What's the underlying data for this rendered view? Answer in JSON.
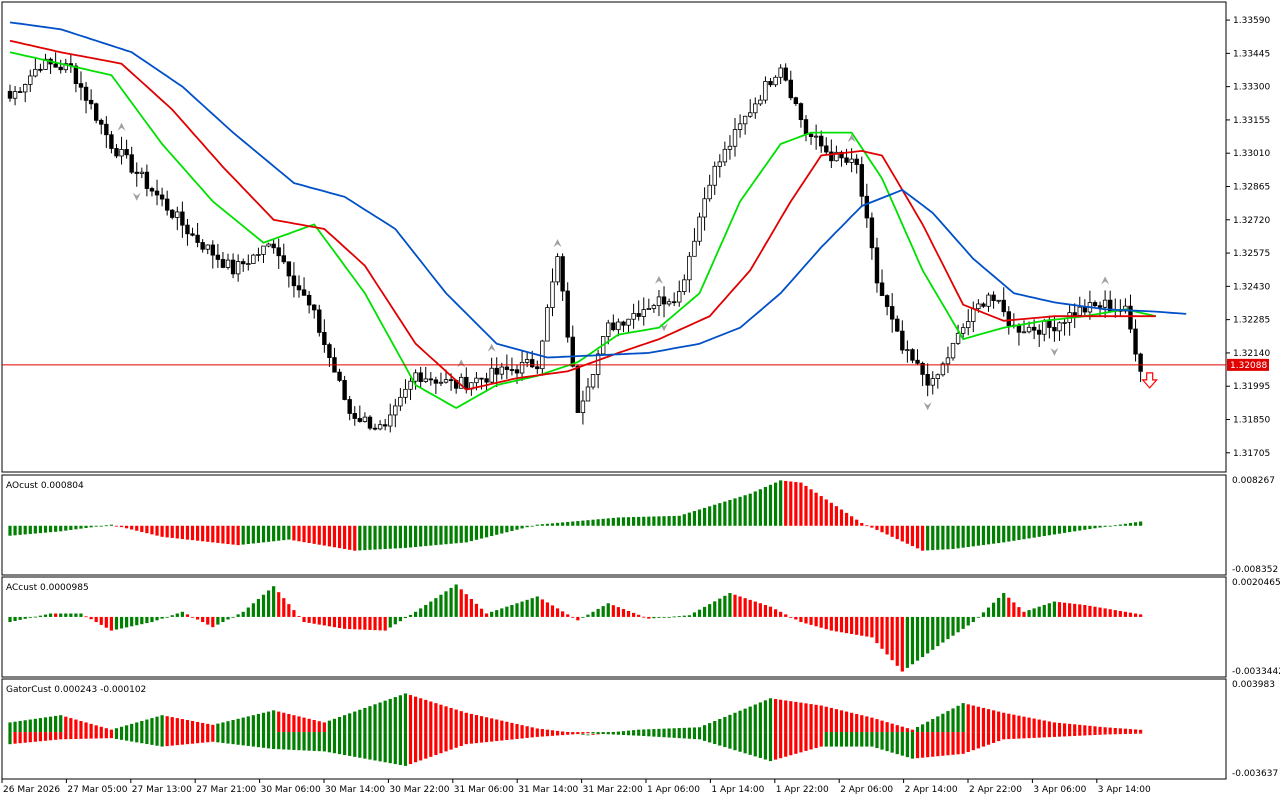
{
  "chart_data": {
    "type": "candlestick",
    "price_axis": {
      "ticks": [
        "1.33590",
        "1.33445",
        "1.33300",
        "1.33155",
        "1.33010",
        "1.32865",
        "1.32720",
        "1.32575",
        "1.32430",
        "1.32285",
        "1.32140",
        "1.31995",
        "1.31850",
        "1.31705"
      ],
      "range": [
        1.3163,
        1.3366
      ]
    },
    "current_price": {
      "value": 1.32088,
      "label": "1.32088",
      "color": "#e00000"
    },
    "time_axis": [
      "26 Mar 2026",
      "27 Mar 05:00",
      "27 Mar 13:00",
      "27 Mar 21:00",
      "30 Mar 06:00",
      "30 Mar 14:00",
      "30 Mar 22:00",
      "31 Mar 06:00",
      "31 Mar 14:00",
      "31 Mar 22:00",
      "1 Apr 06:00",
      "1 Apr 14:00",
      "1 Apr 22:00",
      "2 Apr 06:00",
      "2 Apr 14:00",
      "2 Apr 22:00",
      "3 Apr 06:00",
      "3 Apr 14:00"
    ],
    "close_path": [
      [
        0,
        1.3325
      ],
      [
        6,
        1.334
      ],
      [
        12,
        1.3338
      ],
      [
        20,
        1.3305
      ],
      [
        28,
        1.3285
      ],
      [
        36,
        1.3265
      ],
      [
        44,
        1.325
      ],
      [
        52,
        1.3262
      ],
      [
        60,
        1.323
      ],
      [
        67,
        1.3188
      ],
      [
        74,
        1.318
      ],
      [
        80,
        1.3205
      ],
      [
        88,
        1.32
      ],
      [
        96,
        1.3205
      ],
      [
        104,
        1.321
      ],
      [
        108,
        1.3255
      ],
      [
        112,
        1.319
      ],
      [
        118,
        1.3225
      ],
      [
        126,
        1.3235
      ],
      [
        132,
        1.324
      ],
      [
        138,
        1.329
      ],
      [
        146,
        1.332
      ],
      [
        152,
        1.334
      ],
      [
        157,
        1.331
      ],
      [
        162,
        1.33
      ],
      [
        167,
        1.3295
      ],
      [
        171,
        1.3245
      ],
      [
        176,
        1.3215
      ],
      [
        182,
        1.32
      ],
      [
        188,
        1.3225
      ],
      [
        193,
        1.324
      ],
      [
        198,
        1.3225
      ],
      [
        205,
        1.3225
      ],
      [
        210,
        1.3232
      ],
      [
        216,
        1.3235
      ],
      [
        220,
        1.3232
      ],
      [
        223,
        1.3208
      ]
    ],
    "moving_averages": [
      {
        "color": "#00e000",
        "points": [
          [
            0,
            1.3345
          ],
          [
            10,
            1.334
          ],
          [
            20,
            1.3335
          ],
          [
            30,
            1.3305
          ],
          [
            40,
            1.328
          ],
          [
            50,
            1.3262
          ],
          [
            60,
            1.327
          ],
          [
            70,
            1.324
          ],
          [
            80,
            1.32
          ],
          [
            88,
            1.319
          ],
          [
            96,
            1.32
          ],
          [
            104,
            1.3204
          ],
          [
            112,
            1.321
          ],
          [
            120,
            1.3222
          ],
          [
            128,
            1.3225
          ],
          [
            136,
            1.324
          ],
          [
            144,
            1.328
          ],
          [
            152,
            1.3305
          ],
          [
            158,
            1.331
          ],
          [
            166,
            1.331
          ],
          [
            172,
            1.329
          ],
          [
            180,
            1.325
          ],
          [
            188,
            1.322
          ],
          [
            196,
            1.3225
          ],
          [
            204,
            1.3228
          ],
          [
            212,
            1.323
          ],
          [
            220,
            1.3233
          ],
          [
            226,
            1.323
          ]
        ]
      },
      {
        "color": "#e00000",
        "points": [
          [
            0,
            1.335
          ],
          [
            10,
            1.3345
          ],
          [
            22,
            1.334
          ],
          [
            32,
            1.332
          ],
          [
            42,
            1.3295
          ],
          [
            52,
            1.3272
          ],
          [
            62,
            1.3268
          ],
          [
            70,
            1.3252
          ],
          [
            80,
            1.3218
          ],
          [
            90,
            1.3198
          ],
          [
            100,
            1.3203
          ],
          [
            110,
            1.3206
          ],
          [
            120,
            1.3214
          ],
          [
            128,
            1.322
          ],
          [
            138,
            1.323
          ],
          [
            146,
            1.325
          ],
          [
            154,
            1.328
          ],
          [
            160,
            1.33
          ],
          [
            168,
            1.3302
          ],
          [
            172,
            1.33
          ],
          [
            180,
            1.327
          ],
          [
            188,
            1.3235
          ],
          [
            196,
            1.3228
          ],
          [
            206,
            1.323
          ],
          [
            216,
            1.323
          ],
          [
            226,
            1.323
          ]
        ]
      },
      {
        "color": "#0050c8",
        "points": [
          [
            0,
            1.3358
          ],
          [
            10,
            1.3355
          ],
          [
            24,
            1.3345
          ],
          [
            34,
            1.333
          ],
          [
            44,
            1.331
          ],
          [
            56,
            1.3288
          ],
          [
            66,
            1.3282
          ],
          [
            76,
            1.3268
          ],
          [
            86,
            1.324
          ],
          [
            96,
            1.3218
          ],
          [
            106,
            1.3212
          ],
          [
            116,
            1.3213
          ],
          [
            126,
            1.3214
          ],
          [
            136,
            1.3218
          ],
          [
            144,
            1.3225
          ],
          [
            152,
            1.324
          ],
          [
            160,
            1.326
          ],
          [
            168,
            1.3278
          ],
          [
            176,
            1.3285
          ],
          [
            182,
            1.3275
          ],
          [
            190,
            1.3255
          ],
          [
            198,
            1.324
          ],
          [
            206,
            1.3236
          ],
          [
            216,
            1.3233
          ],
          [
            226,
            1.3232
          ],
          [
            232,
            1.3231
          ]
        ]
      }
    ],
    "indicators": [
      {
        "name": "AOcust",
        "label": "AOcust 0.000804",
        "axis": [
          "0.008267",
          "-0.008352"
        ],
        "range": [
          -0.008352,
          0.008267
        ],
        "colors": [
          "#007f00",
          "#ff0000"
        ],
        "path": [
          [
            0,
            -0.0018
          ],
          [
            10,
            -0.001
          ],
          [
            20,
            0.0002
          ],
          [
            30,
            -0.002
          ],
          [
            45,
            -0.0035
          ],
          [
            55,
            -0.0025
          ],
          [
            68,
            -0.0045
          ],
          [
            78,
            -0.004
          ],
          [
            90,
            -0.003
          ],
          [
            104,
            0.0002
          ],
          [
            120,
            0.0015
          ],
          [
            132,
            0.0018
          ],
          [
            146,
            0.0058
          ],
          [
            152,
            0.0082
          ],
          [
            156,
            0.0078
          ],
          [
            168,
            0.0005
          ],
          [
            180,
            -0.0045
          ],
          [
            186,
            -0.0042
          ],
          [
            196,
            -0.003
          ],
          [
            210,
            -0.001
          ],
          [
            224,
            0.0009
          ]
        ]
      },
      {
        "name": "ACcust",
        "label": "ACcust 0.0000985",
        "axis": [
          "0.0020465",
          "-0.0033442"
        ],
        "range": [
          -0.0033442,
          0.0020465
        ],
        "colors": [
          "#007f00",
          "#ff0000"
        ],
        "path": [
          [
            0,
            -0.0003
          ],
          [
            8,
            0.0002
          ],
          [
            14,
            0.0002
          ],
          [
            20,
            -0.0008
          ],
          [
            28,
            -0.0003
          ],
          [
            34,
            0.0003
          ],
          [
            40,
            -0.0006
          ],
          [
            46,
            0.0003
          ],
          [
            52,
            0.0018
          ],
          [
            58,
            -0.0003
          ],
          [
            66,
            -0.0007
          ],
          [
            74,
            -0.0008
          ],
          [
            80,
            0.0003
          ],
          [
            88,
            0.0019
          ],
          [
            94,
            0.0002
          ],
          [
            104,
            0.0012
          ],
          [
            112,
            -0.0002
          ],
          [
            118,
            0.0008
          ],
          [
            126,
            -0.0001
          ],
          [
            134,
            0.0001
          ],
          [
            142,
            0.0014
          ],
          [
            150,
            0.0006
          ],
          [
            156,
            -0.0003
          ],
          [
            162,
            -0.0008
          ],
          [
            170,
            -0.0012
          ],
          [
            176,
            -0.0032
          ],
          [
            184,
            -0.0015
          ],
          [
            190,
            -0.0003
          ],
          [
            196,
            0.0014
          ],
          [
            200,
            0.0003
          ],
          [
            206,
            0.0009
          ],
          [
            212,
            0.0007
          ],
          [
            224,
            0.0001
          ]
        ]
      },
      {
        "name": "GatorCust",
        "label": "GatorCust 0.000243 -0.000102",
        "axis": [
          "0.003983",
          "-0.003637"
        ],
        "range": [
          -0.003637,
          0.003983
        ],
        "colors": [
          "#007f00",
          "#ff0000"
        ],
        "upper": [
          [
            0,
            0.0008
          ],
          [
            10,
            0.0014
          ],
          [
            20,
            0.0002
          ],
          [
            30,
            0.0014
          ],
          [
            40,
            0.0006
          ],
          [
            52,
            0.0018
          ],
          [
            62,
            0.0008
          ],
          [
            78,
            0.0032
          ],
          [
            90,
            0.0016
          ],
          [
            104,
            0.0003
          ],
          [
            114,
            -0.0002
          ],
          [
            124,
            0.0002
          ],
          [
            136,
            0.0004
          ],
          [
            150,
            0.0028
          ],
          [
            160,
            0.0022
          ],
          [
            170,
            0.0012
          ],
          [
            178,
            0.0002
          ],
          [
            188,
            0.0024
          ],
          [
            196,
            0.0016
          ],
          [
            206,
            0.0008
          ],
          [
            216,
            0.0004
          ],
          [
            226,
            0.0001
          ]
        ],
        "lower": [
          [
            0,
            -0.001
          ],
          [
            10,
            -0.0006
          ],
          [
            20,
            -0.0005
          ],
          [
            30,
            -0.0012
          ],
          [
            40,
            -0.0008
          ],
          [
            52,
            -0.0014
          ],
          [
            62,
            -0.0016
          ],
          [
            78,
            -0.0028
          ],
          [
            90,
            -0.001
          ],
          [
            104,
            -0.0004
          ],
          [
            114,
            -0.0001
          ],
          [
            124,
            -0.0003
          ],
          [
            136,
            -0.0006
          ],
          [
            150,
            -0.0024
          ],
          [
            160,
            -0.0012
          ],
          [
            170,
            -0.0012
          ],
          [
            178,
            -0.0022
          ],
          [
            188,
            -0.0018
          ],
          [
            196,
            -0.0006
          ],
          [
            206,
            -0.0004
          ],
          [
            216,
            -0.0002
          ],
          [
            226,
            -0.0001
          ]
        ]
      }
    ]
  }
}
